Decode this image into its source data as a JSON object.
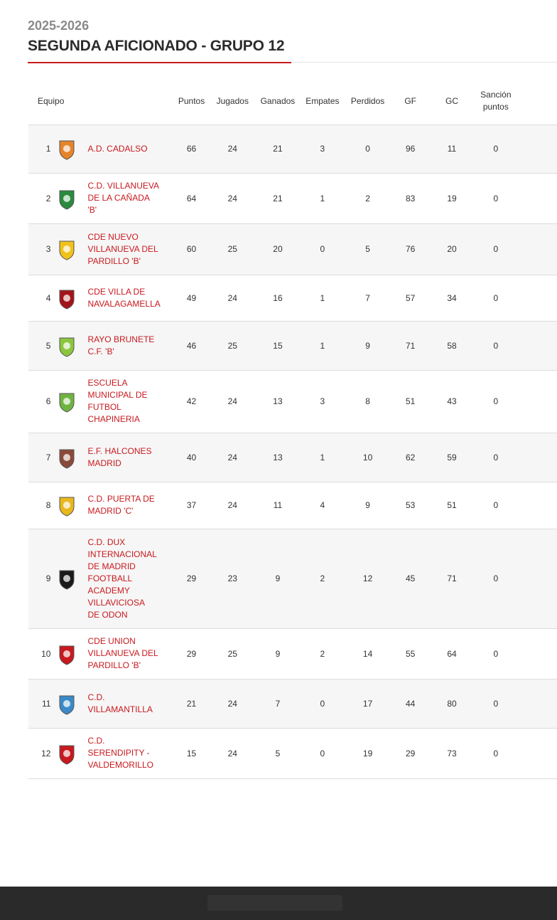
{
  "header": {
    "season": "2025-2026",
    "title": "SEGUNDA AFICIONADO - GRUPO 12"
  },
  "table": {
    "columns": [
      "Equipo",
      "Puntos",
      "Jugados",
      "Ganados",
      "Empates",
      "Perdidos",
      "GF",
      "GC",
      "Sanción puntos"
    ],
    "rows": [
      {
        "pos": "1",
        "team": [
          "A.D. CADALSO"
        ],
        "pts": "66",
        "pj": "24",
        "g": "21",
        "e": "3",
        "p": "0",
        "gf": "96",
        "gc": "11",
        "sp": "0",
        "crest_icon": "cadalso-crest-icon",
        "crest_color": "#e6842a"
      },
      {
        "pos": "2",
        "team": [
          "C.D. VILLANUEVA",
          "DE LA CAÑADA",
          "'B'"
        ],
        "pts": "64",
        "pj": "24",
        "g": "21",
        "e": "1",
        "p": "2",
        "gf": "83",
        "gc": "19",
        "sp": "0",
        "crest_icon": "villanueva-canada-crest-icon",
        "crest_color": "#2a8a3e"
      },
      {
        "pos": "3",
        "team": [
          "CDE NUEVO",
          "VILLANUEVA DEL",
          "PARDILLO 'B'"
        ],
        "pts": "60",
        "pj": "25",
        "g": "20",
        "e": "0",
        "p": "5",
        "gf": "76",
        "gc": "20",
        "sp": "0",
        "crest_icon": "nuevo-villanueva-pardillo-crest-icon",
        "crest_color": "#f2c21b"
      },
      {
        "pos": "4",
        "team": [
          "CDE VILLA DE",
          "NAVALAGAMELLA"
        ],
        "pts": "49",
        "pj": "24",
        "g": "16",
        "e": "1",
        "p": "7",
        "gf": "57",
        "gc": "34",
        "sp": "0",
        "crest_icon": "navalagamella-crest-icon",
        "crest_color": "#a3141a"
      },
      {
        "pos": "5",
        "team": [
          "RAYO BRUNETE",
          "C.F. 'B'"
        ],
        "pts": "46",
        "pj": "25",
        "g": "15",
        "e": "1",
        "p": "9",
        "gf": "71",
        "gc": "58",
        "sp": "0",
        "crest_icon": "rayo-brunete-crest-icon",
        "crest_color": "#8cc63e"
      },
      {
        "pos": "6",
        "team": [
          "ESCUELA",
          "MUNICIPAL DE",
          "FUTBOL",
          "CHAPINERIA"
        ],
        "pts": "42",
        "pj": "24",
        "g": "13",
        "e": "3",
        "p": "8",
        "gf": "51",
        "gc": "43",
        "sp": "0",
        "crest_icon": "chapineria-crest-icon",
        "crest_color": "#6fb440"
      },
      {
        "pos": "7",
        "team": [
          "E.F. HALCONES",
          "MADRID"
        ],
        "pts": "40",
        "pj": "24",
        "g": "13",
        "e": "1",
        "p": "10",
        "gf": "62",
        "gc": "59",
        "sp": "0",
        "crest_icon": "halcones-madrid-crest-icon",
        "crest_color": "#8a4a3a"
      },
      {
        "pos": "8",
        "team": [
          "C.D. PUERTA DE",
          "MADRID 'C'"
        ],
        "pts": "37",
        "pj": "24",
        "g": "11",
        "e": "4",
        "p": "9",
        "gf": "53",
        "gc": "51",
        "sp": "0",
        "crest_icon": "puerta-madrid-crest-icon",
        "crest_color": "#e8b81e"
      },
      {
        "pos": "9",
        "team": [
          "C.D. DUX",
          "INTERNACIONAL",
          "DE MADRID",
          "FOOTBALL",
          "ACADEMY",
          "VILLAVICIOSA",
          "DE ODON"
        ],
        "pts": "29",
        "pj": "23",
        "g": "9",
        "e": "2",
        "p": "12",
        "gf": "45",
        "gc": "71",
        "sp": "0",
        "crest_icon": "dux-internacional-crest-icon",
        "crest_color": "#1a1a1a"
      },
      {
        "pos": "10",
        "team": [
          "CDE UNION",
          "VILLANUEVA DEL",
          "PARDILLO 'B'"
        ],
        "pts": "29",
        "pj": "25",
        "g": "9",
        "e": "2",
        "p": "14",
        "gf": "55",
        "gc": "64",
        "sp": "0",
        "crest_icon": "union-villanueva-pardillo-crest-icon",
        "crest_color": "#c8191e"
      },
      {
        "pos": "11",
        "team": [
          "C.D.",
          "VILLAMANTILLA"
        ],
        "pts": "21",
        "pj": "24",
        "g": "7",
        "e": "0",
        "p": "17",
        "gf": "44",
        "gc": "80",
        "sp": "0",
        "crest_icon": "villamantilla-crest-icon",
        "crest_color": "#3a8ac8"
      },
      {
        "pos": "12",
        "team": [
          "C.D.",
          "SERENDIPITY -",
          "VALDEMORILLO"
        ],
        "pts": "15",
        "pj": "24",
        "g": "5",
        "e": "0",
        "p": "19",
        "gf": "29",
        "gc": "73",
        "sp": "0",
        "crest_icon": "serendipity-valdemorillo-crest-icon",
        "crest_color": "#c8191e"
      }
    ]
  },
  "colors": {
    "accent": "#c8191e",
    "footer": "#2a2a2a",
    "row_alt": "#f6f6f6"
  }
}
